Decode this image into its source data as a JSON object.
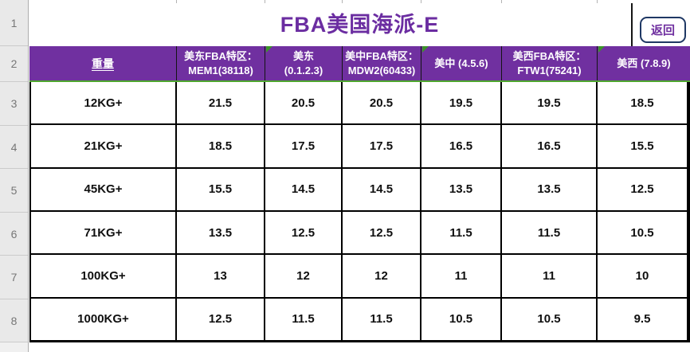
{
  "colors": {
    "header_bg": "#7030A0",
    "title_text": "#6B2DA1",
    "green_line": "#4EA72E",
    "corner_triangle": "#3C9428",
    "back_button_border": "#1F3864",
    "back_button_text": "#7030A0"
  },
  "title": "FBA美国海派-E",
  "back_button_label": "返回",
  "row_headers": [
    "1",
    "2",
    "3",
    "4",
    "5",
    "6",
    "7",
    "8"
  ],
  "table": {
    "header": [
      {
        "lines": [
          "重量"
        ],
        "underline": true
      },
      {
        "lines": [
          "美东FBA特区：",
          "MEM1(38118)"
        ]
      },
      {
        "lines": [
          "美东",
          "(0.1.2.3)"
        ],
        "corner_mark": true
      },
      {
        "lines": [
          "美中FBA特区：",
          "MDW2(60433)"
        ]
      },
      {
        "lines": [
          "美中 (4.5.6)"
        ],
        "corner_mark": true
      },
      {
        "lines": [
          "美西FBA特区：",
          "FTW1(75241)"
        ]
      },
      {
        "lines": [
          "美西 (7.8.9)"
        ],
        "corner_mark": true
      }
    ],
    "rows": [
      {
        "weight": "12KG+",
        "values": [
          "21.5",
          "20.5",
          "20.5",
          "19.5",
          "19.5",
          "18.5"
        ]
      },
      {
        "weight": "21KG+",
        "values": [
          "18.5",
          "17.5",
          "17.5",
          "16.5",
          "16.5",
          "15.5"
        ]
      },
      {
        "weight": "45KG+",
        "values": [
          "15.5",
          "14.5",
          "14.5",
          "13.5",
          "13.5",
          "12.5"
        ]
      },
      {
        "weight": "71KG+",
        "values": [
          "13.5",
          "12.5",
          "12.5",
          "11.5",
          "11.5",
          "10.5"
        ]
      },
      {
        "weight": "100KG+",
        "values": [
          "13",
          "12",
          "12",
          "11",
          "11",
          "10"
        ]
      },
      {
        "weight": "1000KG+",
        "values": [
          "12.5",
          "11.5",
          "11.5",
          "10.5",
          "10.5",
          "9.5"
        ]
      }
    ]
  }
}
